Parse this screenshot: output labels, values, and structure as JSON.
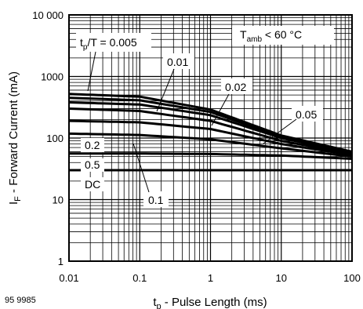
{
  "chart_data": {
    "type": "line",
    "x_scale": "log",
    "y_scale": "log",
    "xlim": [
      0.01,
      100
    ],
    "ylim": [
      1,
      10000
    ],
    "grid": true,
    "xlabel_main": "t",
    "xlabel_sub": "p",
    "xlabel_rest": " - Pulse Length (ms)",
    "ylabel_main": "I",
    "ylabel_sub": "F",
    "ylabel_rest": " - Forward Current (mA)",
    "x_tick_labels": [
      "0.01",
      "0.1",
      "1",
      "10",
      "100"
    ],
    "y_tick_labels": [
      "1",
      "10",
      "100",
      "1000",
      "10 000"
    ],
    "condition_main": "T",
    "condition_sub": "amb",
    "condition_rest": " < 60 °C",
    "figure_ref": "95 9985",
    "series": [
      {
        "label_main": "t",
        "label_sub": "p",
        "label_rest": "/T = 0.005",
        "x": [
          0.01,
          0.1,
          1,
          10,
          100
        ],
        "y": [
          520,
          470,
          290,
          110,
          60
        ]
      },
      {
        "label": "0.01",
        "x": [
          0.01,
          0.1,
          1,
          10,
          100
        ],
        "y": [
          450,
          410,
          265,
          105,
          58
        ]
      },
      {
        "label": "0.02",
        "x": [
          0.01,
          0.1,
          1,
          10,
          100
        ],
        "y": [
          380,
          350,
          235,
          100,
          57
        ]
      },
      {
        "label": "0.05",
        "x": [
          0.01,
          0.1,
          1,
          10,
          100
        ],
        "y": [
          300,
          275,
          190,
          90,
          55
        ]
      },
      {
        "label": "0.1",
        "x": [
          0.01,
          0.1,
          1,
          10,
          100
        ],
        "y": [
          190,
          180,
          140,
          80,
          53
        ]
      },
      {
        "label": "0.2",
        "x": [
          0.01,
          0.1,
          1,
          10,
          100
        ],
        "y": [
          118,
          112,
          95,
          68,
          50
        ]
      },
      {
        "label": "0.5",
        "x": [
          0.01,
          0.1,
          1,
          10,
          100
        ],
        "y": [
          56,
          56,
          55,
          52,
          46
        ]
      },
      {
        "label": "DC",
        "x": [
          0.01,
          0.1,
          1,
          10,
          100
        ],
        "y": [
          30,
          30,
          30,
          30,
          30
        ]
      }
    ]
  }
}
